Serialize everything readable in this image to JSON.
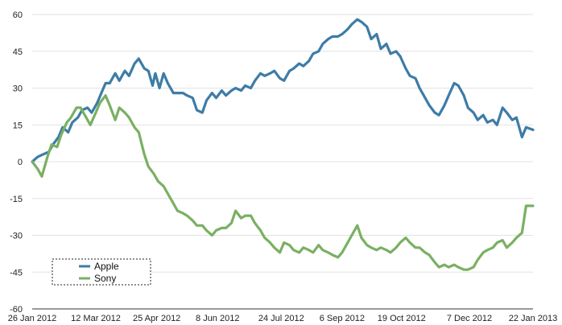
{
  "chart_data": {
    "type": "line",
    "title": "",
    "xlabel": "",
    "ylabel": "",
    "ylim": [
      -60,
      60
    ],
    "yticks": [
      60,
      45,
      30,
      15,
      0,
      -15,
      -30,
      -45,
      -60
    ],
    "xlim": [
      "2012-01-26",
      "2013-01-22"
    ],
    "xticks": [
      {
        "date": "2012-01-26",
        "label": "26 Jan 2012"
      },
      {
        "date": "2012-03-12",
        "label": "12 Mar 2012"
      },
      {
        "date": "2012-04-25",
        "label": "25 Apr 2012"
      },
      {
        "date": "2012-06-08",
        "label": "8 Jun 2012"
      },
      {
        "date": "2012-07-24",
        "label": "24 Jul 2012"
      },
      {
        "date": "2012-09-06",
        "label": "6 Sep 2012"
      },
      {
        "date": "2012-10-19",
        "label": "19 Oct 2012"
      },
      {
        "date": "2012-12-07",
        "label": "7 Dec 2012"
      },
      {
        "date": "2013-01-22",
        "label": "22 Jan 2013"
      }
    ],
    "grid": "horizontal",
    "legend_position": "bottom-left",
    "series": [
      {
        "name": "Apple",
        "color": "#3d7ca7",
        "points": [
          [
            "2012-01-26",
            0
          ],
          [
            "2012-01-30",
            2
          ],
          [
            "2012-02-03",
            3
          ],
          [
            "2012-02-07",
            4
          ],
          [
            "2012-02-10",
            7
          ],
          [
            "2012-02-14",
            10
          ],
          [
            "2012-02-17",
            14
          ],
          [
            "2012-02-21",
            12
          ],
          [
            "2012-02-24",
            16
          ],
          [
            "2012-02-28",
            18
          ],
          [
            "2012-03-02",
            21
          ],
          [
            "2012-03-06",
            22
          ],
          [
            "2012-03-09",
            20
          ],
          [
            "2012-03-13",
            24
          ],
          [
            "2012-03-16",
            28
          ],
          [
            "2012-03-19",
            32
          ],
          [
            "2012-03-22",
            32
          ],
          [
            "2012-03-26",
            36
          ],
          [
            "2012-03-29",
            33
          ],
          [
            "2012-04-02",
            37
          ],
          [
            "2012-04-05",
            35
          ],
          [
            "2012-04-09",
            40
          ],
          [
            "2012-04-12",
            42
          ],
          [
            "2012-04-16",
            38
          ],
          [
            "2012-04-19",
            37
          ],
          [
            "2012-04-22",
            31
          ],
          [
            "2012-04-24",
            36
          ],
          [
            "2012-04-27",
            30
          ],
          [
            "2012-04-30",
            36
          ],
          [
            "2012-05-03",
            32
          ],
          [
            "2012-05-07",
            28
          ],
          [
            "2012-05-10",
            28
          ],
          [
            "2012-05-14",
            28
          ],
          [
            "2012-05-17",
            27
          ],
          [
            "2012-05-21",
            26
          ],
          [
            "2012-05-24",
            21
          ],
          [
            "2012-05-28",
            20
          ],
          [
            "2012-05-31",
            25
          ],
          [
            "2012-06-04",
            28
          ],
          [
            "2012-06-07",
            26
          ],
          [
            "2012-06-11",
            29
          ],
          [
            "2012-06-14",
            27
          ],
          [
            "2012-06-18",
            29
          ],
          [
            "2012-06-21",
            30
          ],
          [
            "2012-06-25",
            29
          ],
          [
            "2012-06-28",
            31
          ],
          [
            "2012-07-02",
            30
          ],
          [
            "2012-07-05",
            33
          ],
          [
            "2012-07-09",
            36
          ],
          [
            "2012-07-12",
            35
          ],
          [
            "2012-07-16",
            36
          ],
          [
            "2012-07-19",
            37
          ],
          [
            "2012-07-23",
            34
          ],
          [
            "2012-07-26",
            33
          ],
          [
            "2012-07-30",
            37
          ],
          [
            "2012-08-02",
            38
          ],
          [
            "2012-08-06",
            40
          ],
          [
            "2012-08-09",
            39
          ],
          [
            "2012-08-13",
            41
          ],
          [
            "2012-08-16",
            44
          ],
          [
            "2012-08-20",
            45
          ],
          [
            "2012-08-23",
            48
          ],
          [
            "2012-08-27",
            50
          ],
          [
            "2012-08-30",
            51
          ],
          [
            "2012-09-03",
            51
          ],
          [
            "2012-09-06",
            52
          ],
          [
            "2012-09-10",
            54
          ],
          [
            "2012-09-13",
            56
          ],
          [
            "2012-09-17",
            58
          ],
          [
            "2012-09-20",
            57
          ],
          [
            "2012-09-24",
            55
          ],
          [
            "2012-09-27",
            50
          ],
          [
            "2012-10-01",
            52
          ],
          [
            "2012-10-04",
            46
          ],
          [
            "2012-10-08",
            48
          ],
          [
            "2012-10-11",
            44
          ],
          [
            "2012-10-15",
            45
          ],
          [
            "2012-10-18",
            43
          ],
          [
            "2012-10-22",
            38
          ],
          [
            "2012-10-25",
            35
          ],
          [
            "2012-10-29",
            34
          ],
          [
            "2012-11-01",
            30
          ],
          [
            "2012-11-05",
            26
          ],
          [
            "2012-11-08",
            23
          ],
          [
            "2012-11-12",
            20
          ],
          [
            "2012-11-15",
            19
          ],
          [
            "2012-11-19",
            23
          ],
          [
            "2012-11-22",
            27
          ],
          [
            "2012-11-26",
            32
          ],
          [
            "2012-11-29",
            31
          ],
          [
            "2012-12-03",
            27
          ],
          [
            "2012-12-06",
            22
          ],
          [
            "2012-12-10",
            20
          ],
          [
            "2012-12-13",
            17
          ],
          [
            "2012-12-17",
            19
          ],
          [
            "2012-12-20",
            16
          ],
          [
            "2012-12-24",
            17
          ],
          [
            "2012-12-27",
            15
          ],
          [
            "2012-12-31",
            22
          ],
          [
            "2013-01-03",
            20
          ],
          [
            "2013-01-07",
            17
          ],
          [
            "2013-01-10",
            18
          ],
          [
            "2013-01-14",
            10
          ],
          [
            "2013-01-17",
            14
          ],
          [
            "2013-01-22",
            13
          ]
        ]
      },
      {
        "name": "Sony",
        "color": "#7ab062",
        "points": [
          [
            "2012-01-26",
            0
          ],
          [
            "2012-01-30",
            -3
          ],
          [
            "2012-02-02",
            -6
          ],
          [
            "2012-02-06",
            2
          ],
          [
            "2012-02-09",
            7
          ],
          [
            "2012-02-13",
            6
          ],
          [
            "2012-02-16",
            11
          ],
          [
            "2012-02-20",
            16
          ],
          [
            "2012-02-23",
            18
          ],
          [
            "2012-02-27",
            22
          ],
          [
            "2012-03-01",
            22
          ],
          [
            "2012-03-05",
            18
          ],
          [
            "2012-03-08",
            15
          ],
          [
            "2012-03-12",
            20
          ],
          [
            "2012-03-15",
            24
          ],
          [
            "2012-03-19",
            27
          ],
          [
            "2012-03-22",
            23
          ],
          [
            "2012-03-26",
            17
          ],
          [
            "2012-03-29",
            22
          ],
          [
            "2012-04-02",
            20
          ],
          [
            "2012-04-05",
            18
          ],
          [
            "2012-04-09",
            14
          ],
          [
            "2012-04-12",
            12
          ],
          [
            "2012-04-16",
            3
          ],
          [
            "2012-04-19",
            -2
          ],
          [
            "2012-04-23",
            -5
          ],
          [
            "2012-04-26",
            -8
          ],
          [
            "2012-04-30",
            -10
          ],
          [
            "2012-05-03",
            -13
          ],
          [
            "2012-05-07",
            -17
          ],
          [
            "2012-05-10",
            -20
          ],
          [
            "2012-05-14",
            -21
          ],
          [
            "2012-05-17",
            -22
          ],
          [
            "2012-05-21",
            -24
          ],
          [
            "2012-05-24",
            -26
          ],
          [
            "2012-05-28",
            -26
          ],
          [
            "2012-05-31",
            -28
          ],
          [
            "2012-06-04",
            -30
          ],
          [
            "2012-06-07",
            -28
          ],
          [
            "2012-06-11",
            -27
          ],
          [
            "2012-06-14",
            -27
          ],
          [
            "2012-06-18",
            -25
          ],
          [
            "2012-06-21",
            -20
          ],
          [
            "2012-06-25",
            -23
          ],
          [
            "2012-06-28",
            -22
          ],
          [
            "2012-07-02",
            -22
          ],
          [
            "2012-07-05",
            -25
          ],
          [
            "2012-07-09",
            -28
          ],
          [
            "2012-07-12",
            -31
          ],
          [
            "2012-07-16",
            -33
          ],
          [
            "2012-07-19",
            -35
          ],
          [
            "2012-07-23",
            -37
          ],
          [
            "2012-07-26",
            -33
          ],
          [
            "2012-07-30",
            -34
          ],
          [
            "2012-08-02",
            -36
          ],
          [
            "2012-08-06",
            -37
          ],
          [
            "2012-08-09",
            -35
          ],
          [
            "2012-08-13",
            -36
          ],
          [
            "2012-08-16",
            -37
          ],
          [
            "2012-08-20",
            -34
          ],
          [
            "2012-08-23",
            -36
          ],
          [
            "2012-08-27",
            -37
          ],
          [
            "2012-08-30",
            -38
          ],
          [
            "2012-09-03",
            -39
          ],
          [
            "2012-09-06",
            -37
          ],
          [
            "2012-09-10",
            -33
          ],
          [
            "2012-09-13",
            -30
          ],
          [
            "2012-09-17",
            -26
          ],
          [
            "2012-09-20",
            -31
          ],
          [
            "2012-09-24",
            -34
          ],
          [
            "2012-09-27",
            -35
          ],
          [
            "2012-10-01",
            -36
          ],
          [
            "2012-10-04",
            -35
          ],
          [
            "2012-10-08",
            -36
          ],
          [
            "2012-10-11",
            -37
          ],
          [
            "2012-10-15",
            -35
          ],
          [
            "2012-10-18",
            -33
          ],
          [
            "2012-10-22",
            -31
          ],
          [
            "2012-10-25",
            -33
          ],
          [
            "2012-10-29",
            -35
          ],
          [
            "2012-11-01",
            -35
          ],
          [
            "2012-11-05",
            -37
          ],
          [
            "2012-11-08",
            -38
          ],
          [
            "2012-11-12",
            -41
          ],
          [
            "2012-11-15",
            -43
          ],
          [
            "2012-11-19",
            -42
          ],
          [
            "2012-11-22",
            -43
          ],
          [
            "2012-11-26",
            -42
          ],
          [
            "2012-11-29",
            -43
          ],
          [
            "2012-12-03",
            -44
          ],
          [
            "2012-12-06",
            -44
          ],
          [
            "2012-12-10",
            -43
          ],
          [
            "2012-12-13",
            -40
          ],
          [
            "2012-12-17",
            -37
          ],
          [
            "2012-12-20",
            -36
          ],
          [
            "2012-12-24",
            -35
          ],
          [
            "2012-12-27",
            -33
          ],
          [
            "2012-12-31",
            -32
          ],
          [
            "2013-01-03",
            -35
          ],
          [
            "2013-01-07",
            -33
          ],
          [
            "2013-01-10",
            -31
          ],
          [
            "2013-01-14",
            -29
          ],
          [
            "2013-01-17",
            -18
          ],
          [
            "2013-01-22",
            -18
          ]
        ]
      }
    ]
  }
}
